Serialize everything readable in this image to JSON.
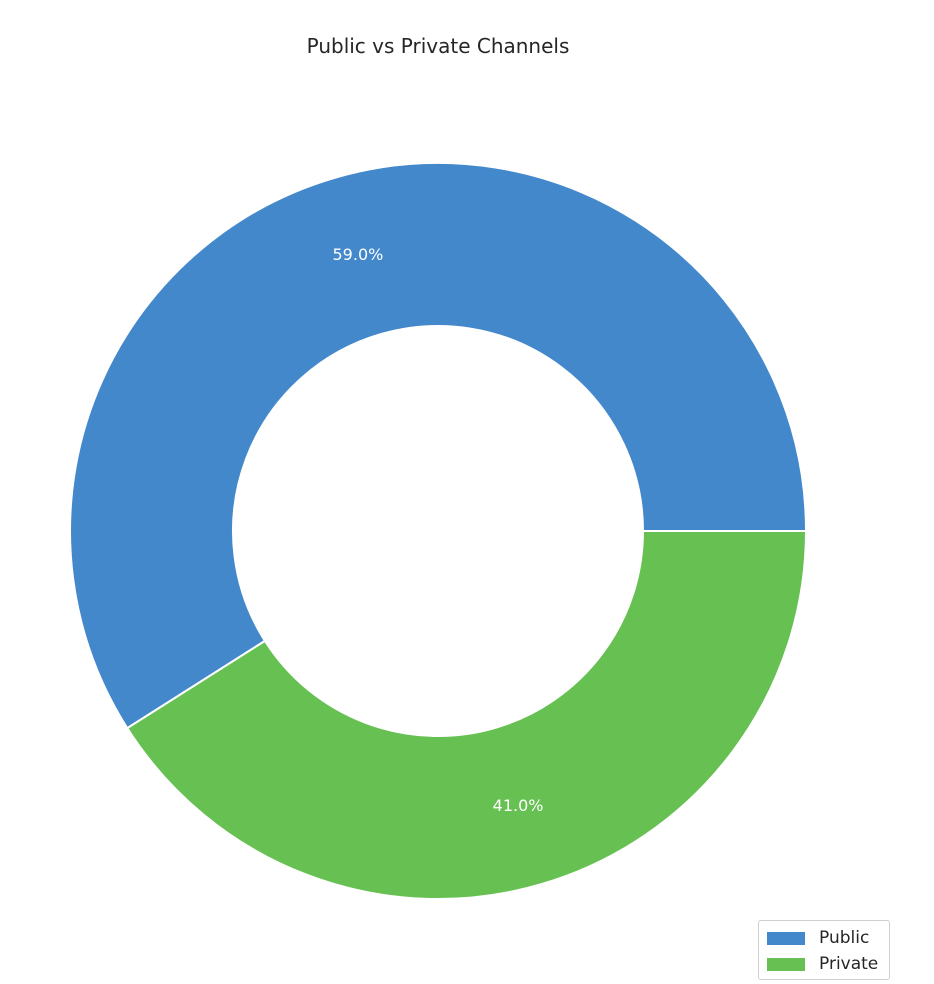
{
  "chart_data": {
    "type": "pie",
    "title": "Public vs Private Channels",
    "donut": true,
    "legend_position": "bottom-right",
    "slices": [
      {
        "name": "Public",
        "value": 59.0,
        "label": "59.0%",
        "color": "#4488cc"
      },
      {
        "name": "Private",
        "value": 41.0,
        "label": "41.0%",
        "color": "#66c052"
      }
    ]
  }
}
